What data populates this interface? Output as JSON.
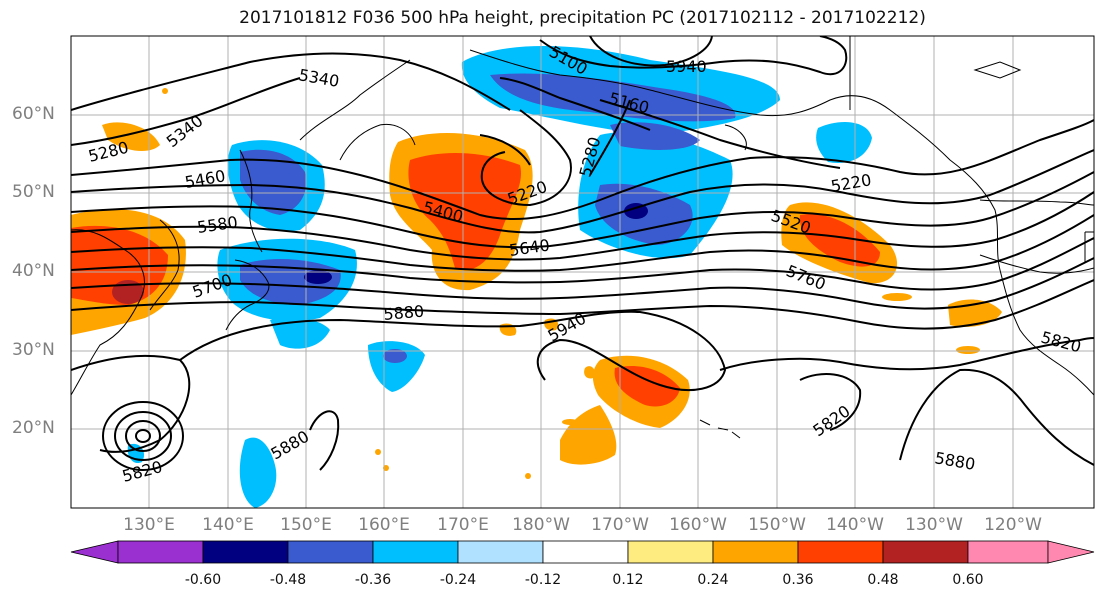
{
  "title": "2017101812 F036 500 hPa height, precipitation PC (2017102112 - 2017102212)",
  "lat_labels": [
    "60°N",
    "50°N",
    "40°N",
    "30°N",
    "20°N"
  ],
  "lon_labels": [
    "130°E",
    "140°E",
    "150°E",
    "160°E",
    "170°E",
    "180°W",
    "170°W",
    "160°W",
    "150°W",
    "140°W",
    "130°W",
    "120°W"
  ],
  "contour_labels": [
    "5340",
    "5340",
    "5280",
    "5460",
    "5580",
    "5700",
    "5100",
    "5940",
    "5160",
    "5280",
    "5220",
    "5400",
    "5640",
    "5520",
    "5760",
    "5220",
    "5880",
    "5940",
    "5820",
    "5880",
    "5820",
    "5880",
    "5820"
  ],
  "colorbar": {
    "tick_labels": [
      "-0.60",
      "-0.48",
      "-0.36",
      "-0.24",
      "-0.12",
      "0.12",
      "0.24",
      "0.36",
      "0.48",
      "0.60"
    ],
    "colors": [
      "#9b30d0",
      "#000080",
      "#3a5bd0",
      "#00bfff",
      "#b0e2ff",
      "#ffffff",
      "#ffec80",
      "#ffa500",
      "#ff4000",
      "#b22222",
      "#ff88b0"
    ]
  },
  "colors": {
    "neg_strong": "#3a5bd0",
    "neg_mid": "#00bfff",
    "neg_weak": "#b0e2ff",
    "pos_weak": "#ffec80",
    "pos_mid": "#ffa500",
    "pos_strong": "#ff4000",
    "pos_max": "#b22222",
    "neg_max": "#000080"
  }
}
